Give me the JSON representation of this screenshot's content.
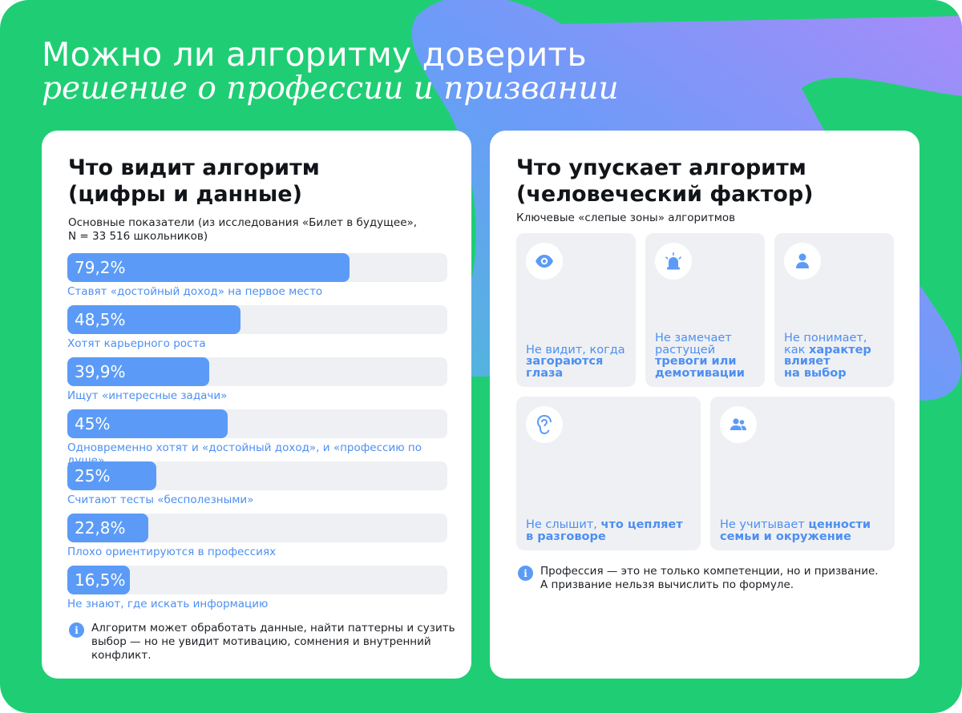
{
  "header": {
    "title": "Можно ли алгоритму доверить",
    "subtitle": "решение о профессии и призвании"
  },
  "colors": {
    "background_green": "#1fce74",
    "accent_blue": "#5b9bf7",
    "text_blue": "#4d8ff2",
    "track_gray": "#eef0f3",
    "deco_gradient_start": "#5b9bf7",
    "deco_gradient_end": "#a98bf9"
  },
  "left_card": {
    "title_line1": "Что видит алгоритм",
    "title_line2": "(цифры и данные)",
    "note_line1": "Основные показатели (из исследования «Билет в будущее»,",
    "note_line2": "N = 33 516 школьников)",
    "bars": [
      {
        "value": "79,2%",
        "fraction": 0.792,
        "label": "Ставят «достойный доход» на первое место"
      },
      {
        "value": "48,5%",
        "fraction": 0.485,
        "label": "Хотят карьерного роста"
      },
      {
        "value": "39,9%",
        "fraction": 0.399,
        "label": "Ищут «интересные задачи»"
      },
      {
        "value": "45%",
        "fraction": 0.45,
        "label": "Одновременно хотят и «достойный доход», и «профессию по душе»"
      },
      {
        "value": "25%",
        "fraction": 0.25,
        "label": "Считают тесты «бесполезными»"
      },
      {
        "value": "22,8%",
        "fraction": 0.228,
        "label": "Плохо ориентируются в профессиях"
      },
      {
        "value": "16,5%",
        "fraction": 0.165,
        "label": "Не знают, где искать информацию"
      }
    ],
    "info_icon": "info-icon",
    "info_line1": "Алгоритм может обработать данные, найти паттерны и сузить",
    "info_line2": "выбор — но не увидит мотивацию, сомнения и внутренний",
    "info_line3": "конфликт."
  },
  "right_card": {
    "title_line1": "Что упускает алгоритм",
    "title_line2": "(человеческий фактор)",
    "note": "Ключевые «слепые зоны» алгоритмов",
    "tiles": [
      {
        "icon": "eye-icon",
        "line1_plain": "Не видит, когда",
        "line2_bold": "загораются",
        "line3_bold": "глаза"
      },
      {
        "icon": "alarm-icon",
        "line1_plain": "Не замечает",
        "line2_plain": "растущей",
        "line3_bold": "тревоги или",
        "line4_bold": "демотивации"
      },
      {
        "icon": "person-icon",
        "line1_plain": "Не понимает,",
        "line2_plain": "как",
        "line2_bold": "характер",
        "line3_bold": "влияет",
        "line4_bold": "на выбор"
      },
      {
        "icon": "ear-icon",
        "line1_plain": "Не слышит,",
        "line1_bold": "что цепляет",
        "line2_bold": "в разговоре"
      },
      {
        "icon": "people-icon",
        "line1_plain": "Не учитывает",
        "line1_bold": "ценности",
        "line2_bold": "семьи и окружение"
      }
    ],
    "info_icon": "info-icon",
    "info_line1": "Профессия — это не только компетенции, но и призвание.",
    "info_line2": "А призвание нельзя вычислить по формуле."
  }
}
